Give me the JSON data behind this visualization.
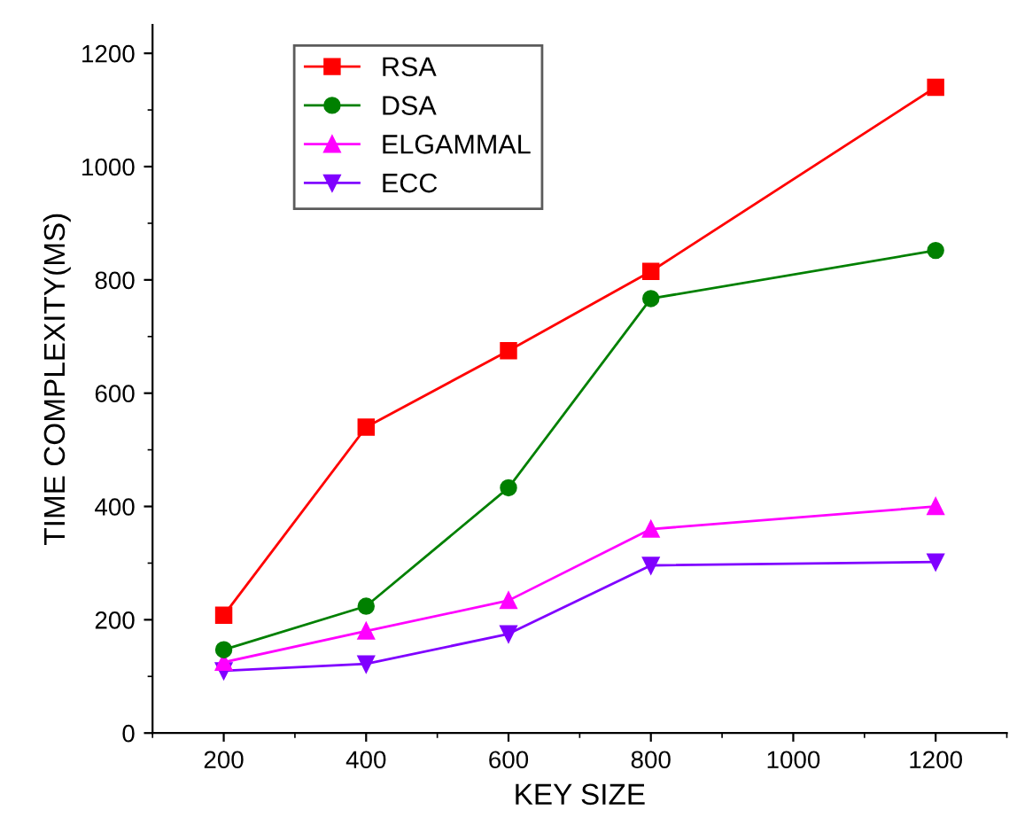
{
  "chart_data": {
    "type": "line",
    "xlabel": "KEY SIZE",
    "ylabel": "TIME COMPLEXITY(MS)",
    "x": [
      200,
      400,
      600,
      800,
      1200
    ],
    "series": [
      {
        "name": "RSA",
        "color": "#ff0000",
        "values": [
          208,
          540,
          675,
          815,
          1140
        ],
        "marker": "square"
      },
      {
        "name": "DSA",
        "color": "#008000",
        "values": [
          147,
          224,
          433,
          767,
          852
        ],
        "marker": "circle"
      },
      {
        "name": "ELGAMMAL",
        "color": "#ff00ff",
        "values": [
          125,
          180,
          234,
          360,
          400
        ],
        "marker": "triangle"
      },
      {
        "name": "ECC",
        "color": "#8000ff",
        "values": [
          110,
          122,
          175,
          296,
          302
        ],
        "marker": "triangle_down"
      }
    ],
    "xlim": [
      100,
      1300
    ],
    "xticks": [
      200,
      400,
      600,
      800,
      1000,
      1200
    ],
    "ylim": [
      0,
      1250
    ],
    "yticks": [
      0,
      200,
      400,
      600,
      800,
      1000,
      1200
    ],
    "grid": false,
    "legend": "top left",
    "line_style": "solid"
  }
}
